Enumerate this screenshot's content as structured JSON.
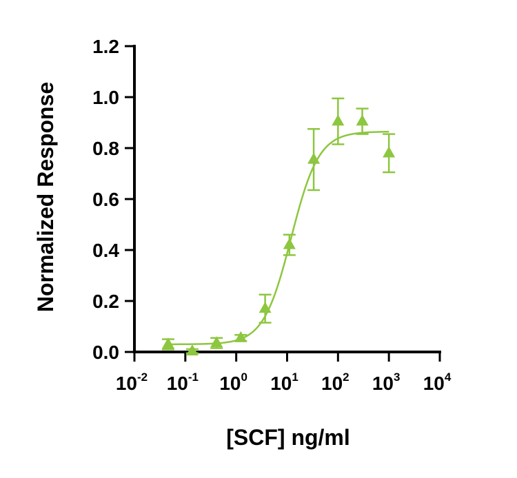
{
  "chart_data": {
    "type": "scatter",
    "title": "",
    "xlabel": "[SCF] ng/ml",
    "ylabel": "Normalized Response",
    "x_scale": "log10",
    "xlim": [
      0.01,
      10000
    ],
    "ylim": [
      0,
      1.2
    ],
    "x_tick_base": "10",
    "x_tick_exponents": [
      "-2",
      "-1",
      "0",
      "1",
      "2",
      "3",
      "4"
    ],
    "y_ticks": [
      "0.0",
      "0.2",
      "0.4",
      "0.6",
      "0.8",
      "1.0",
      "1.2"
    ],
    "grid": false,
    "legend": "none",
    "color": "#8dc63f",
    "marker": "triangle",
    "series": [
      {
        "x": [
          0.046,
          0.137,
          0.412,
          1.23,
          3.7,
          11.1,
          33.3,
          100,
          300,
          1000
        ],
        "y": [
          0.03,
          0.003,
          0.035,
          0.055,
          0.17,
          0.42,
          0.755,
          0.905,
          0.905,
          0.78
        ],
        "error": [
          0.02,
          0.008,
          0.02,
          0.012,
          0.055,
          0.04,
          0.12,
          0.09,
          0.05,
          0.075
        ]
      }
    ],
    "fit_curve": {
      "model": "4PL",
      "bottom": 0.03,
      "top": 0.865,
      "ec50": 12,
      "hill": 1.6,
      "x_range": [
        0.046,
        1000
      ]
    }
  }
}
